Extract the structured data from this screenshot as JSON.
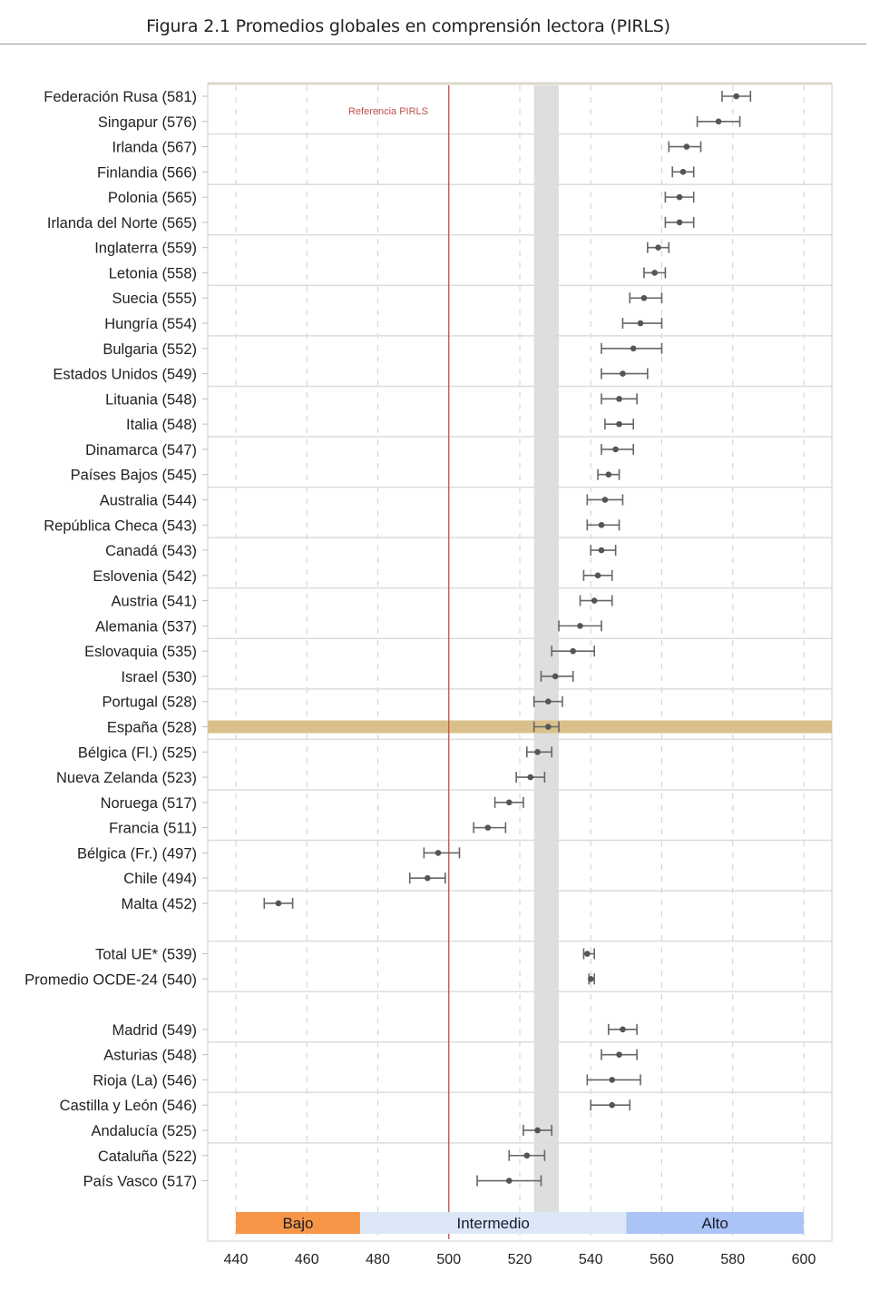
{
  "figure": {
    "title": "Figura 2.1 Promedios globales en comprensión lectora (PIRLS)"
  },
  "chart_data": {
    "type": "scatter",
    "subtype": "dot-plot-with-confidence-intervals",
    "title": "Figura 2.1 Promedios globales en comprensión lectora (PIRLS)",
    "xlabel": "",
    "ylabel": "",
    "xlim": [
      440,
      600
    ],
    "x_ticks": [
      440,
      460,
      480,
      500,
      520,
      540,
      560,
      580,
      600
    ],
    "grid": "vertical dashed",
    "reference_line": {
      "value": 500,
      "label": "Referencia PIRLS",
      "color": "#c0504d"
    },
    "highlight_band": {
      "from": 524,
      "to": 531,
      "color": "#dedede"
    },
    "highlight_row": {
      "label": "España (528)",
      "color": "#d9c08a"
    },
    "performance_levels": [
      {
        "label": "Bajo",
        "from": 440,
        "to": 475,
        "color": "#f79646"
      },
      {
        "label": "Intermedio",
        "from": 475,
        "to": 550,
        "color": "#dce8f8"
      },
      {
        "label": "Alto",
        "from": 550,
        "to": 600,
        "color": "#a9c4f5"
      }
    ],
    "rows": [
      {
        "label": "Federación Rusa (581)",
        "value": 581,
        "low": 577,
        "high": 585
      },
      {
        "label": "Singapur (576)",
        "value": 576,
        "low": 570,
        "high": 582
      },
      {
        "label": "Irlanda (567)",
        "value": 567,
        "low": 562,
        "high": 571
      },
      {
        "label": "Finlandia (566)",
        "value": 566,
        "low": 563,
        "high": 569
      },
      {
        "label": "Polonia (565)",
        "value": 565,
        "low": 561,
        "high": 569
      },
      {
        "label": "Irlanda del Norte (565)",
        "value": 565,
        "low": 561,
        "high": 569
      },
      {
        "label": "Inglaterra (559)",
        "value": 559,
        "low": 556,
        "high": 562
      },
      {
        "label": "Letonia (558)",
        "value": 558,
        "low": 555,
        "high": 561
      },
      {
        "label": "Suecia (555)",
        "value": 555,
        "low": 551,
        "high": 560
      },
      {
        "label": "Hungría (554)",
        "value": 554,
        "low": 549,
        "high": 560
      },
      {
        "label": "Bulgaria (552)",
        "value": 552,
        "low": 543,
        "high": 560
      },
      {
        "label": "Estados Unidos (549)",
        "value": 549,
        "low": 543,
        "high": 556
      },
      {
        "label": "Lituania (548)",
        "value": 548,
        "low": 543,
        "high": 553
      },
      {
        "label": "Italia (548)",
        "value": 548,
        "low": 544,
        "high": 552
      },
      {
        "label": "Dinamarca (547)",
        "value": 547,
        "low": 543,
        "high": 552
      },
      {
        "label": "Países Bajos (545)",
        "value": 545,
        "low": 542,
        "high": 548
      },
      {
        "label": "Australia (544)",
        "value": 544,
        "low": 539,
        "high": 549
      },
      {
        "label": "República Checa (543)",
        "value": 543,
        "low": 539,
        "high": 548
      },
      {
        "label": "Canadá (543)",
        "value": 543,
        "low": 540,
        "high": 547
      },
      {
        "label": "Eslovenia (542)",
        "value": 542,
        "low": 538,
        "high": 546
      },
      {
        "label": "Austria (541)",
        "value": 541,
        "low": 537,
        "high": 546
      },
      {
        "label": "Alemania (537)",
        "value": 537,
        "low": 531,
        "high": 543
      },
      {
        "label": "Eslovaquia (535)",
        "value": 535,
        "low": 529,
        "high": 541
      },
      {
        "label": "Israel (530)",
        "value": 530,
        "low": 526,
        "high": 535
      },
      {
        "label": "Portugal (528)",
        "value": 528,
        "low": 524,
        "high": 532
      },
      {
        "label": "España (528)",
        "value": 528,
        "low": 524,
        "high": 531,
        "highlight": true
      },
      {
        "label": "Bélgica (Fl.) (525)",
        "value": 525,
        "low": 522,
        "high": 529
      },
      {
        "label": "Nueva Zelanda (523)",
        "value": 523,
        "low": 519,
        "high": 527
      },
      {
        "label": "Noruega (517)",
        "value": 517,
        "low": 513,
        "high": 521
      },
      {
        "label": "Francia (511)",
        "value": 511,
        "low": 507,
        "high": 516
      },
      {
        "label": "Bélgica (Fr.) (497)",
        "value": 497,
        "low": 493,
        "high": 503
      },
      {
        "label": "Chile (494)",
        "value": 494,
        "low": 489,
        "high": 499
      },
      {
        "label": "Malta (452)",
        "value": 452,
        "low": 448,
        "high": 456
      },
      {
        "label": "",
        "gap": true
      },
      {
        "label": "Total UE* (539)",
        "value": 539,
        "low": 538,
        "high": 541
      },
      {
        "label": "Promedio OCDE-24 (540)",
        "value": 540,
        "low": 539.5,
        "high": 541
      },
      {
        "label": "",
        "gap": true
      },
      {
        "label": "Madrid (549)",
        "value": 549,
        "low": 545,
        "high": 553
      },
      {
        "label": "Asturias (548)",
        "value": 548,
        "low": 543,
        "high": 553
      },
      {
        "label": "Rioja (La) (546)",
        "value": 546,
        "low": 539,
        "high": 554
      },
      {
        "label": "Castilla y León (546)",
        "value": 546,
        "low": 540,
        "high": 551
      },
      {
        "label": "Andalucía (525)",
        "value": 525,
        "low": 521,
        "high": 529
      },
      {
        "label": "Cataluña (522)",
        "value": 522,
        "low": 517,
        "high": 527
      },
      {
        "label": "País Vasco (517)",
        "value": 517,
        "low": 508,
        "high": 526
      }
    ]
  }
}
